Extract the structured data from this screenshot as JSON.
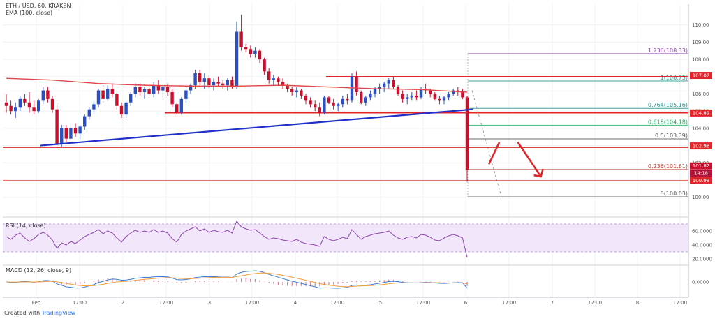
{
  "chart_data": [
    {
      "type": "candlestick",
      "title": "ETH / USD, 60, KRAKEN",
      "indicator_label": "EMA (100, close)",
      "ylim": [
        99.3,
        111.2
      ],
      "y_ticks": [
        100,
        101,
        102,
        103,
        104,
        105,
        106,
        107,
        108,
        109,
        110
      ],
      "x_ticks": [
        "Feb",
        "12:00",
        "2",
        "12:00",
        "3",
        "12:00",
        "4",
        "12:00",
        "5",
        "12:00",
        "6",
        "12:00",
        "7",
        "12:00",
        "8",
        "12:00"
      ],
      "grid": true,
      "colors": {
        "up": "#2d4fbf",
        "down": "#c8102e",
        "ema": "#e0454a",
        "trend": "#1f2fc8",
        "fib": "#9b59b6",
        "res": "#e0262a"
      },
      "candles": [
        [
          105.5,
          106.0,
          104.9,
          105.3
        ],
        [
          105.3,
          105.6,
          104.8,
          105.0
        ],
        [
          105.0,
          105.5,
          104.6,
          105.2
        ],
        [
          105.2,
          105.9,
          105.0,
          105.7
        ],
        [
          105.7,
          106.0,
          105.3,
          105.5
        ],
        [
          105.5,
          106.1,
          104.9,
          105.2
        ],
        [
          105.2,
          105.6,
          104.8,
          105.0
        ],
        [
          105.0,
          105.7,
          104.9,
          105.6
        ],
        [
          105.6,
          106.4,
          105.4,
          106.2
        ],
        [
          106.2,
          106.4,
          105.5,
          105.7
        ],
        [
          105.7,
          105.9,
          104.9,
          105.1
        ],
        [
          105.1,
          105.5,
          102.8,
          103.1
        ],
        [
          103.1,
          104.2,
          102.9,
          104.0
        ],
        [
          104.0,
          104.2,
          103.2,
          103.4
        ],
        [
          103.4,
          104.1,
          103.3,
          104.0
        ],
        [
          104.0,
          104.3,
          103.5,
          103.7
        ],
        [
          103.7,
          104.2,
          103.4,
          104.1
        ],
        [
          104.1,
          104.8,
          103.9,
          104.7
        ],
        [
          104.7,
          105.2,
          104.5,
          105.1
        ],
        [
          105.1,
          105.6,
          104.8,
          105.4
        ],
        [
          105.4,
          106.3,
          105.2,
          106.2
        ],
        [
          106.2,
          106.5,
          105.5,
          105.7
        ],
        [
          105.7,
          106.5,
          105.6,
          106.3
        ],
        [
          106.3,
          106.6,
          105.8,
          106.0
        ],
        [
          106.0,
          106.2,
          105.1,
          105.3
        ],
        [
          105.3,
          105.5,
          104.6,
          104.8
        ],
        [
          104.8,
          105.6,
          104.6,
          105.5
        ],
        [
          105.5,
          106.1,
          105.3,
          106.0
        ],
        [
          106.0,
          106.6,
          105.8,
          106.4
        ],
        [
          106.4,
          106.6,
          105.9,
          106.1
        ],
        [
          106.1,
          106.4,
          105.7,
          106.3
        ],
        [
          106.3,
          106.5,
          105.9,
          106.0
        ],
        [
          106.0,
          106.7,
          105.8,
          106.5
        ],
        [
          106.5,
          106.8,
          106.0,
          106.2
        ],
        [
          106.2,
          106.5,
          105.8,
          106.4
        ],
        [
          106.4,
          106.6,
          105.9,
          106.1
        ],
        [
          106.1,
          106.3,
          105.2,
          105.4
        ],
        [
          105.4,
          105.5,
          104.8,
          104.9
        ],
        [
          104.9,
          105.8,
          104.8,
          105.7
        ],
        [
          105.7,
          106.3,
          105.5,
          106.2
        ],
        [
          106.2,
          106.6,
          106.0,
          106.5
        ],
        [
          106.5,
          107.4,
          106.3,
          107.2
        ],
        [
          107.2,
          107.4,
          106.5,
          106.7
        ],
        [
          106.7,
          107.2,
          106.3,
          106.9
        ],
        [
          106.9,
          107.1,
          106.3,
          106.5
        ],
        [
          106.5,
          106.9,
          106.2,
          106.7
        ],
        [
          106.7,
          107.0,
          106.4,
          106.6
        ],
        [
          106.6,
          106.8,
          106.3,
          106.5
        ],
        [
          106.5,
          106.9,
          106.2,
          106.8
        ],
        [
          106.8,
          107.0,
          106.3,
          106.4
        ],
        [
          106.4,
          110.2,
          106.3,
          109.6
        ],
        [
          109.6,
          110.6,
          108.5,
          108.7
        ],
        [
          108.7,
          108.9,
          108.4,
          108.6
        ],
        [
          108.6,
          108.8,
          108.1,
          108.3
        ],
        [
          108.3,
          108.7,
          108.1,
          108.5
        ],
        [
          108.5,
          108.6,
          107.8,
          108.0
        ],
        [
          108.0,
          108.1,
          107.1,
          107.3
        ],
        [
          107.3,
          107.5,
          106.6,
          106.8
        ],
        [
          106.8,
          107.1,
          106.5,
          106.9
        ],
        [
          106.9,
          107.0,
          106.5,
          106.7
        ],
        [
          106.7,
          106.9,
          106.3,
          106.5
        ],
        [
          106.5,
          106.6,
          106.1,
          106.3
        ],
        [
          106.3,
          106.4,
          105.9,
          106.1
        ],
        [
          106.1,
          106.4,
          105.8,
          106.2
        ],
        [
          106.2,
          106.3,
          105.7,
          105.9
        ],
        [
          105.9,
          106.0,
          105.4,
          105.6
        ],
        [
          105.6,
          105.8,
          105.2,
          105.4
        ],
        [
          105.4,
          105.6,
          105.0,
          105.2
        ],
        [
          105.2,
          105.5,
          104.7,
          104.9
        ],
        [
          104.9,
          105.9,
          104.8,
          105.8
        ],
        [
          105.8,
          105.9,
          105.4,
          105.5
        ],
        [
          105.5,
          105.7,
          105.1,
          105.3
        ],
        [
          105.3,
          105.5,
          105.0,
          105.4
        ],
        [
          105.4,
          105.9,
          105.2,
          105.7
        ],
        [
          105.7,
          106.0,
          105.4,
          105.6
        ],
        [
          105.6,
          107.2,
          105.5,
          107.0
        ],
        [
          107.0,
          107.3,
          105.9,
          106.1
        ],
        [
          106.1,
          106.2,
          105.4,
          105.5
        ],
        [
          105.5,
          105.9,
          105.3,
          105.8
        ],
        [
          105.8,
          106.2,
          105.6,
          106.0
        ],
        [
          106.0,
          106.4,
          105.8,
          106.3
        ],
        [
          106.3,
          106.6,
          106.0,
          106.4
        ],
        [
          106.4,
          106.7,
          106.1,
          106.6
        ],
        [
          106.6,
          106.9,
          106.3,
          106.8
        ],
        [
          106.8,
          107.0,
          106.3,
          106.4
        ],
        [
          106.4,
          106.5,
          105.9,
          106.0
        ],
        [
          106.0,
          106.2,
          105.5,
          105.7
        ],
        [
          105.7,
          106.0,
          105.4,
          105.8
        ],
        [
          105.8,
          106.1,
          105.6,
          105.9
        ],
        [
          105.9,
          106.2,
          105.6,
          105.8
        ],
        [
          105.8,
          106.4,
          105.7,
          106.3
        ],
        [
          106.3,
          106.6,
          106.0,
          106.2
        ],
        [
          106.2,
          106.3,
          105.8,
          106.0
        ],
        [
          106.0,
          106.1,
          105.6,
          105.7
        ],
        [
          105.7,
          105.9,
          105.4,
          105.6
        ],
        [
          105.6,
          105.9,
          105.4,
          105.8
        ],
        [
          105.8,
          106.1,
          105.6,
          106.0
        ],
        [
          106.0,
          106.3,
          105.9,
          106.2
        ],
        [
          106.2,
          106.4,
          105.9,
          106.1
        ],
        [
          106.1,
          106.3,
          105.7,
          105.8
        ],
        [
          105.8,
          105.9,
          100.9,
          101.6
        ]
      ],
      "ema": [
        [
          0,
          106.9
        ],
        [
          10,
          106.8
        ],
        [
          20,
          106.6
        ],
        [
          30,
          106.5
        ],
        [
          40,
          106.45
        ],
        [
          50,
          106.45
        ],
        [
          60,
          106.5
        ],
        [
          70,
          106.4
        ],
        [
          80,
          106.3
        ],
        [
          90,
          106.25
        ],
        [
          100,
          106.1
        ]
      ],
      "trendline": {
        "from": [
          8,
          103.0
        ],
        "to": [
          100,
          105.1
        ]
      },
      "resistance_lines": [
        {
          "from": 35,
          "y": 104.9
        },
        {
          "from": 70,
          "y": 107.0
        },
        {
          "from": 0,
          "y": 102.9
        },
        {
          "from": 0,
          "y": 100.95
        }
      ],
      "fibonacci": [
        {
          "label": "1.236(108.33)",
          "value": 108.33,
          "color": "#8e44ad"
        },
        {
          "label": "1(106.75)",
          "value": 106.75,
          "color": "#2c8f8f"
        },
        {
          "label": "0.764(105.16)",
          "value": 105.16,
          "color": "#2c8f8f"
        },
        {
          "label": "0.618(104.18)",
          "value": 104.18,
          "color": "#27ae60"
        },
        {
          "label": "0.5(103.39)",
          "value": 103.39,
          "color": "#555555"
        },
        {
          "label": "0.236(101.61)",
          "value": 101.61,
          "color": "#c0392b"
        },
        {
          "label": "0(100.03)",
          "value": 100.03,
          "color": "#555555"
        }
      ],
      "price_tags": [
        {
          "label": "107.07",
          "value": 107.07
        },
        {
          "label": "104.89",
          "value": 104.89
        },
        {
          "label": "102.98",
          "value": 102.98
        },
        {
          "label": "101.82",
          "value": 101.82
        },
        {
          "label": "14:18",
          "value": 101.4
        },
        {
          "label": "100.98",
          "value": 100.98
        }
      ],
      "projection": [
        [
          102,
          101.6
        ],
        [
          107,
          103.2
        ],
        [
          111,
          103.2
        ],
        [
          116,
          101.2
        ]
      ]
    },
    {
      "type": "line",
      "title": "RSI (14, close)",
      "ylim": [
        15,
        75
      ],
      "y_ticks": [
        20,
        40,
        60
      ],
      "y_tick_labels": [
        "20.0000",
        "40.0000",
        "60.0000"
      ],
      "band": [
        30,
        70
      ],
      "values": [
        52,
        48,
        54,
        57,
        50,
        45,
        49,
        55,
        58,
        54,
        47,
        35,
        43,
        40,
        45,
        42,
        47,
        52,
        55,
        58,
        62,
        56,
        60,
        57,
        50,
        44,
        52,
        57,
        61,
        58,
        60,
        58,
        62,
        58,
        60,
        57,
        49,
        44,
        55,
        60,
        63,
        66,
        60,
        63,
        58,
        61,
        59,
        58,
        61,
        57,
        74,
        66,
        63,
        61,
        62,
        57,
        52,
        48,
        50,
        49,
        47,
        46,
        45,
        48,
        44,
        42,
        41,
        40,
        38,
        52,
        48,
        46,
        48,
        51,
        49,
        62,
        55,
        48,
        52,
        54,
        56,
        57,
        58,
        60,
        54,
        50,
        48,
        51,
        52,
        50,
        55,
        54,
        51,
        47,
        46,
        50,
        53,
        55,
        53,
        50,
        22
      ]
    },
    {
      "type": "bar+line",
      "title": "MACD (12, 26, close, 9)",
      "ylim": [
        -0.9,
        0.9
      ],
      "y_ticks": [
        0
      ],
      "y_tick_labels": [
        "0.0000"
      ],
      "histogram_colors": {
        "pos": "#d04a6a",
        "neg": "#d04a6a"
      }
    }
  ],
  "footer": {
    "prefix": "Created with",
    "brand": "TradingView"
  }
}
